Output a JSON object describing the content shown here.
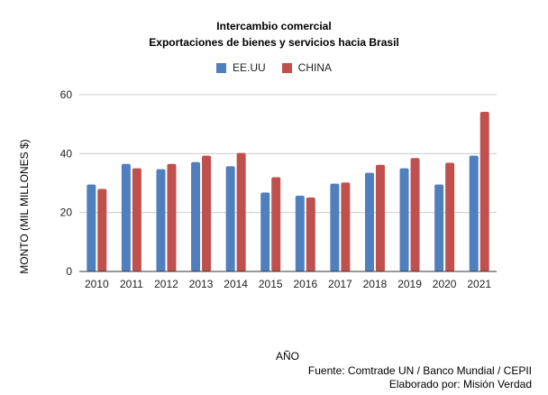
{
  "chart_data": {
    "type": "bar",
    "title": "Intercambio comercial",
    "subtitle": "Exportaciones de bienes y servicios hacia Brasil",
    "xlabel": "AÑO",
    "ylabel": "MONTO (MIL MILLONES $)",
    "ylim": [
      0,
      60
    ],
    "yticks": [
      "0",
      "20",
      "40",
      "60"
    ],
    "grid": true,
    "legend": "top",
    "categories": [
      "2010",
      "2011",
      "2012",
      "2013",
      "2014",
      "2015",
      "2016",
      "2017",
      "2018",
      "2019",
      "2020",
      "2021"
    ],
    "series": [
      {
        "name": "EE.UU",
        "color": "#4f7fbd",
        "values": [
          29.5,
          36.5,
          34.7,
          37.1,
          35.7,
          26.8,
          25.7,
          29.8,
          33.5,
          35.0,
          29.5,
          39.3
        ]
      },
      {
        "name": "CHINA",
        "color": "#c0504d",
        "values": [
          28.0,
          35.0,
          36.5,
          39.3,
          40.2,
          32.0,
          25.1,
          30.2,
          36.2,
          38.5,
          36.9,
          54.2
        ]
      }
    ]
  },
  "footer": {
    "source": "Fuente: Comtrade UN / Banco Mundial / CEPII",
    "credit": "Elaborado por: Misión Verdad"
  }
}
